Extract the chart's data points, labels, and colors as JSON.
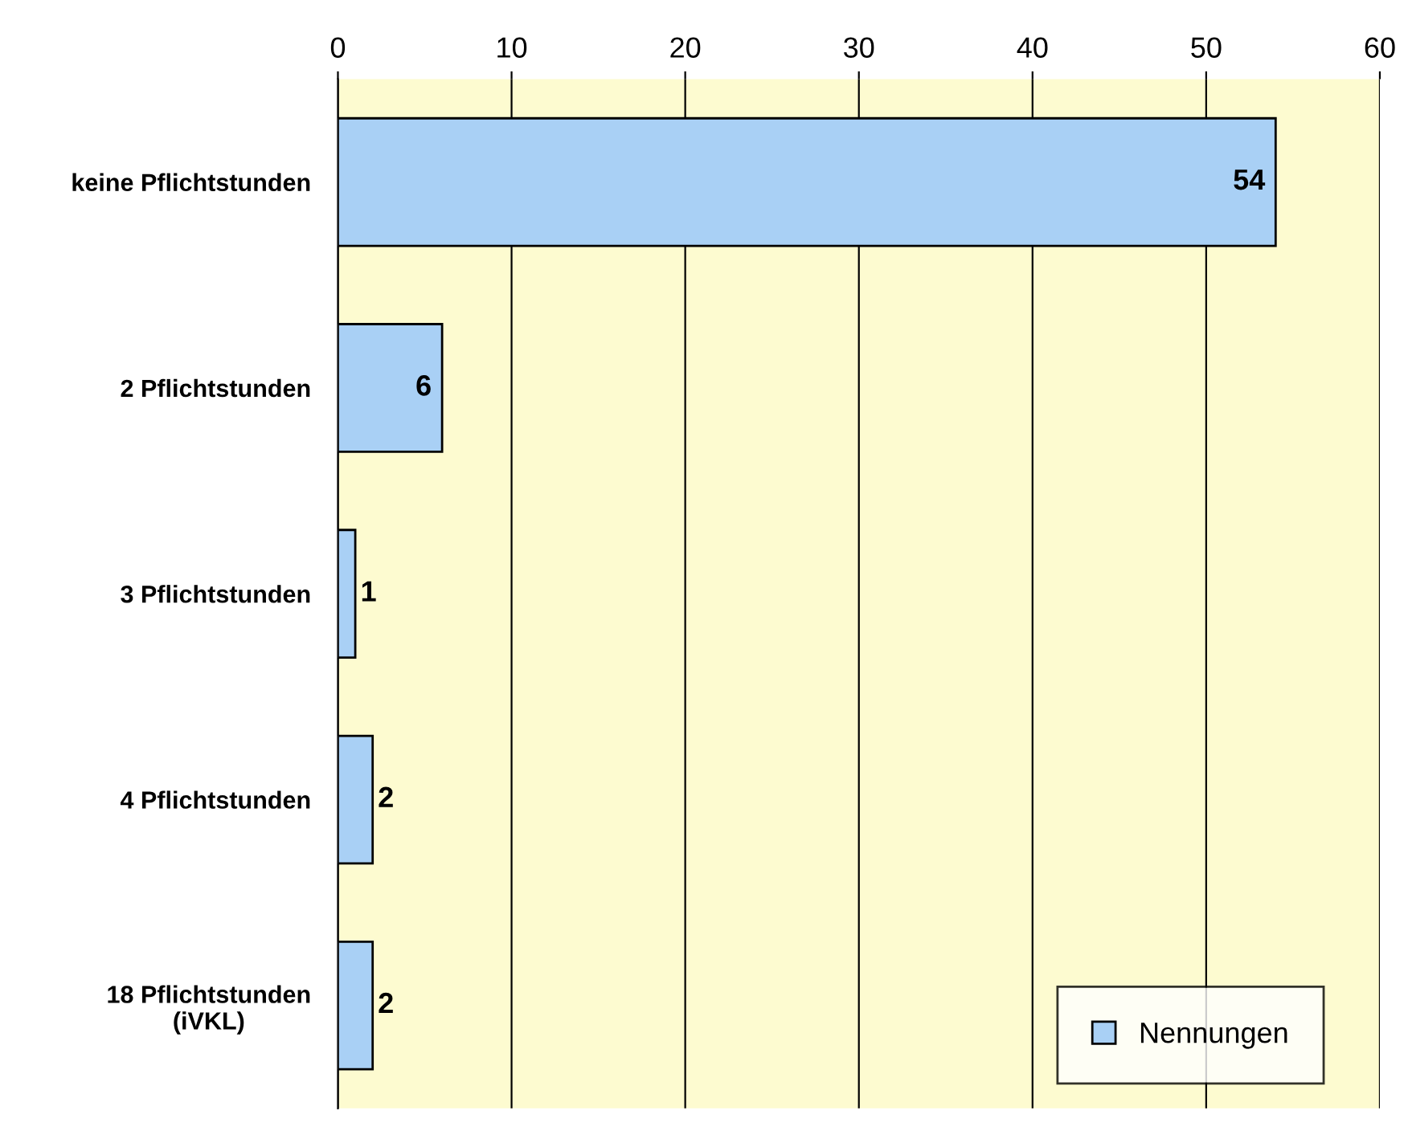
{
  "chart_data": {
    "type": "bar",
    "orientation": "horizontal",
    "categories": [
      "keine Pflichtstunden",
      "2 Pflichtstunden",
      "3 Pflichtstunden",
      "4 Pflichtstunden",
      "18 Pflichtstunden\n(iVKL)"
    ],
    "series": [
      {
        "name": "Nennungen",
        "color": "#a9d0f5",
        "values": [
          54,
          6,
          1,
          2,
          2
        ]
      }
    ],
    "xlim": [
      0,
      60
    ],
    "xticks": [
      0,
      10,
      20,
      30,
      40,
      50,
      60
    ],
    "grid": "x",
    "legend": "bottom right",
    "data_labels": true
  }
}
